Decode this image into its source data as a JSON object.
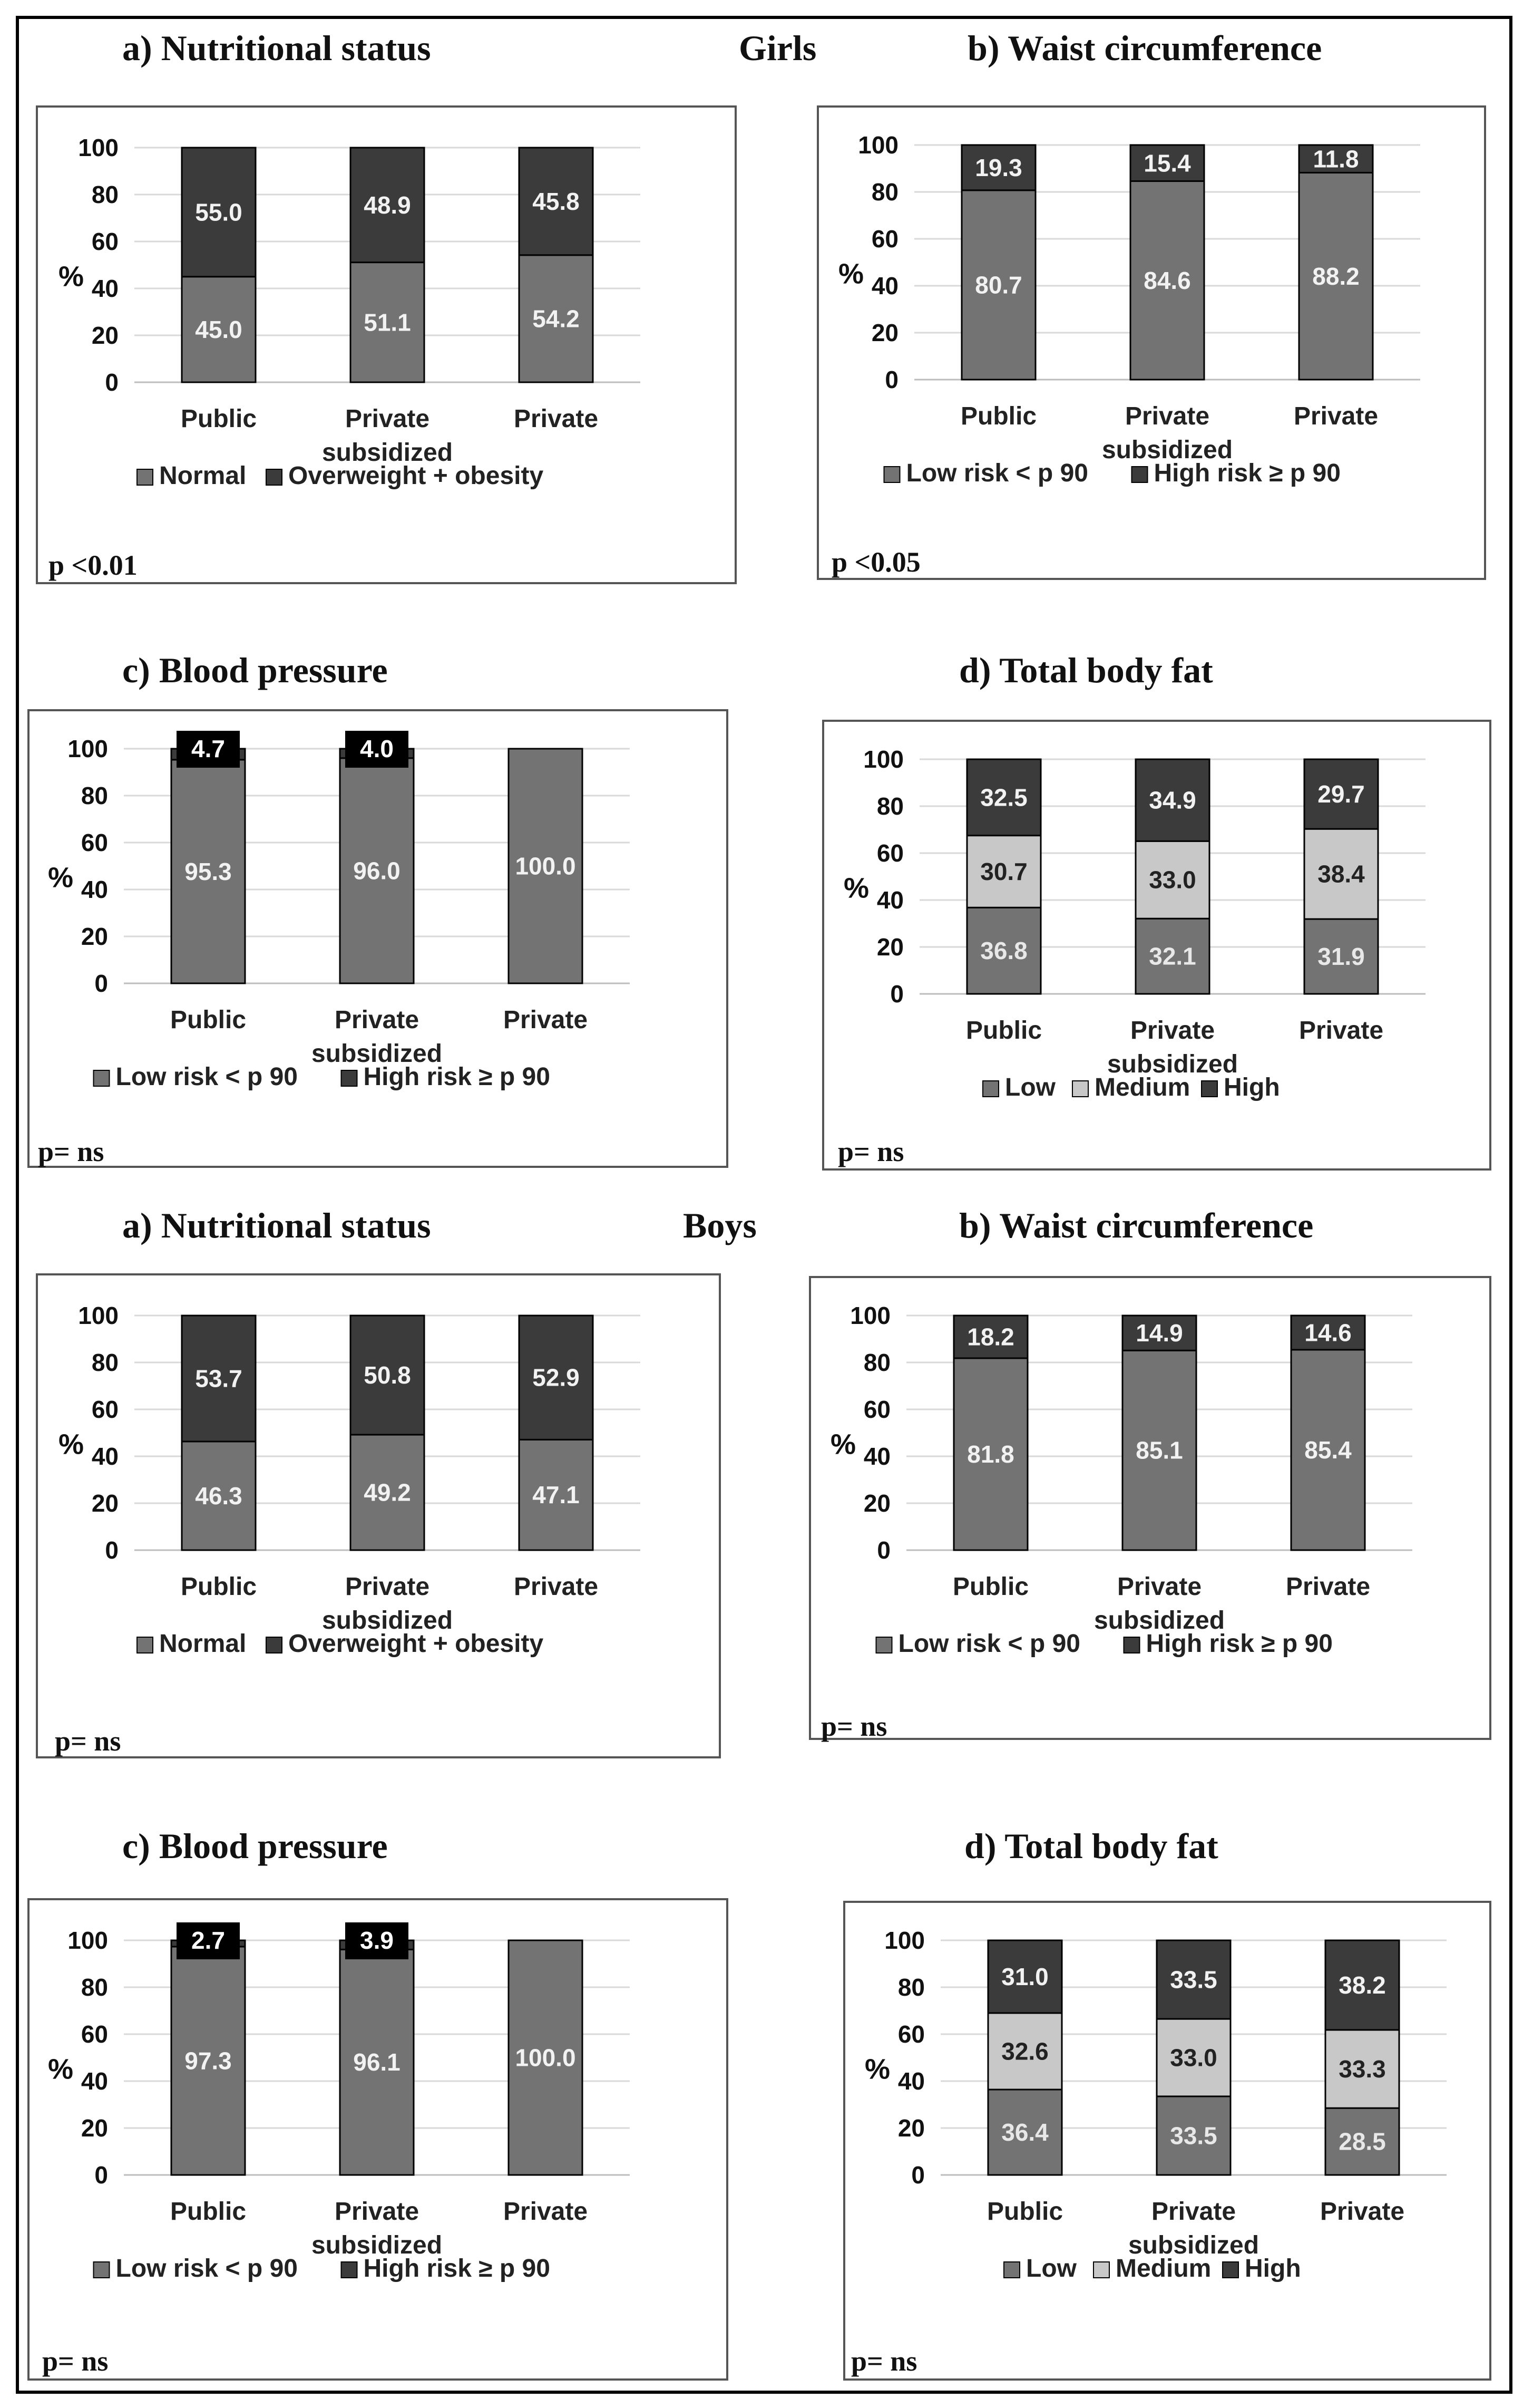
{
  "figure": {
    "girls_label": "Girls",
    "boys_label": "Boys"
  },
  "chart_data": [
    {
      "id": "girls-a",
      "group": "Girls",
      "type": "bar",
      "stacked": true,
      "title": "a)   Nutritional status",
      "ylabel": "%",
      "ylim": [
        0,
        100
      ],
      "yticks": [
        0,
        20,
        40,
        60,
        80,
        100
      ],
      "categories": [
        [
          "Public"
        ],
        [
          "Private",
          "subsidized"
        ],
        [
          "Private"
        ]
      ],
      "series": [
        {
          "name": "Normal",
          "color": "#737373",
          "label_color": "#f2f2f2",
          "values": [
            "45.0",
            "51.1",
            "54.2"
          ]
        },
        {
          "name": "Overweight + obesity",
          "color": "#3b3b3b",
          "label_color": "#f2f2f2",
          "values": [
            "55.0",
            "48.9",
            "45.8"
          ]
        }
      ],
      "p_value": "p <0.01"
    },
    {
      "id": "girls-b",
      "group": "Girls",
      "type": "bar",
      "stacked": true,
      "title": "b) Waist circumference",
      "ylabel": "%",
      "ylim": [
        0,
        100
      ],
      "yticks": [
        0,
        20,
        40,
        60,
        80,
        100
      ],
      "categories": [
        [
          "Public"
        ],
        [
          "Private",
          "subsidized"
        ],
        [
          "Private"
        ]
      ],
      "series": [
        {
          "name": "Low risk < p 90",
          "color": "#737373",
          "label_color": "#f2f2f2",
          "values": [
            "80.7",
            "84.6",
            "88.2"
          ]
        },
        {
          "name": "High risk ≥ p 90",
          "color": "#3b3b3b",
          "label_color": "#f2f2f2",
          "values": [
            "19.3",
            "15.4",
            "11.8"
          ]
        }
      ],
      "p_value": "p <0.05"
    },
    {
      "id": "girls-c",
      "group": "Girls",
      "type": "bar",
      "stacked": true,
      "title": "c) Blood pressure",
      "ylabel": "%",
      "ylim": [
        0,
        100
      ],
      "yticks": [
        0,
        20,
        40,
        60,
        80,
        100
      ],
      "categories": [
        [
          "Public"
        ],
        [
          "Private",
          "subsidized"
        ],
        [
          "Private"
        ]
      ],
      "series": [
        {
          "name": "Low risk < p 90",
          "color": "#737373",
          "label_color": "#f2f2f2",
          "values": [
            "95.3",
            "96.0",
            "100.0"
          ]
        },
        {
          "name": "High risk ≥ p 90",
          "color": "#3b3b3b",
          "label_color": "#ffffff",
          "label_box": true,
          "values": [
            "4.7",
            "4.0",
            null
          ]
        }
      ],
      "p_value": "p= ns"
    },
    {
      "id": "girls-d",
      "group": "Girls",
      "type": "bar",
      "stacked": true,
      "title": "d) Total body fat",
      "ylabel": "%",
      "ylim": [
        0,
        100
      ],
      "yticks": [
        0,
        20,
        40,
        60,
        80,
        100
      ],
      "categories": [
        [
          "Public"
        ],
        [
          "Private",
          "subsidized"
        ],
        [
          "Private"
        ]
      ],
      "series": [
        {
          "name": "Low",
          "color": "#737373",
          "label_color": "#e8e8e8",
          "values": [
            "36.8",
            "32.1",
            "31.9"
          ]
        },
        {
          "name": "Medium",
          "color": "#c8c8c8",
          "label_color": "#222222",
          "values": [
            "30.7",
            "33.0",
            "38.4"
          ]
        },
        {
          "name": "High",
          "color": "#3b3b3b",
          "label_color": "#f2f2f2",
          "values": [
            "32.5",
            "34.9",
            "29.7"
          ]
        }
      ],
      "p_value": "p= ns"
    },
    {
      "id": "boys-a",
      "group": "Boys",
      "type": "bar",
      "stacked": true,
      "title": "a)  Nutritional status",
      "ylabel": "%",
      "ylim": [
        0,
        100
      ],
      "yticks": [
        0,
        20,
        40,
        60,
        80,
        100
      ],
      "categories": [
        [
          "Public"
        ],
        [
          "Private",
          "subsidized"
        ],
        [
          "Private"
        ]
      ],
      "series": [
        {
          "name": "Normal",
          "color": "#737373",
          "label_color": "#f2f2f2",
          "values": [
            "46.3",
            "49.2",
            "47.1"
          ]
        },
        {
          "name": "Overweight + obesity",
          "color": "#3b3b3b",
          "label_color": "#f2f2f2",
          "values": [
            "53.7",
            "50.8",
            "52.9"
          ]
        }
      ],
      "p_value": "p= ns"
    },
    {
      "id": "boys-b",
      "group": "Boys",
      "type": "bar",
      "stacked": true,
      "title": "b) Waist circumference",
      "ylabel": "%",
      "ylim": [
        0,
        100
      ],
      "yticks": [
        0,
        20,
        40,
        60,
        80,
        100
      ],
      "categories": [
        [
          "Public"
        ],
        [
          "Private",
          "subsidized"
        ],
        [
          "Private"
        ]
      ],
      "series": [
        {
          "name": "Low risk < p 90",
          "color": "#737373",
          "label_color": "#f2f2f2",
          "values": [
            "81.8",
            "85.1",
            "85.4"
          ]
        },
        {
          "name": "High risk ≥ p 90",
          "color": "#3b3b3b",
          "label_color": "#f2f2f2",
          "values": [
            "18.2",
            "14.9",
            "14.6"
          ]
        }
      ],
      "p_value": "p= ns"
    },
    {
      "id": "boys-c",
      "group": "Boys",
      "type": "bar",
      "stacked": true,
      "title": "c) Blood pressure",
      "ylabel": "%",
      "ylim": [
        0,
        100
      ],
      "yticks": [
        0,
        20,
        40,
        60,
        80,
        100
      ],
      "categories": [
        [
          "Public"
        ],
        [
          "Private",
          "subsidized"
        ],
        [
          "Private"
        ]
      ],
      "series": [
        {
          "name": "Low risk < p 90",
          "color": "#737373",
          "label_color": "#f2f2f2",
          "values": [
            "97.3",
            "96.1",
            "100.0"
          ]
        },
        {
          "name": "High risk ≥ p 90",
          "color": "#3b3b3b",
          "label_color": "#ffffff",
          "label_box": true,
          "values": [
            "2.7",
            "3.9",
            null
          ]
        }
      ],
      "p_value": "p= ns"
    },
    {
      "id": "boys-d",
      "group": "Boys",
      "type": "bar",
      "stacked": true,
      "title": "d) Total body fat",
      "ylabel": "%",
      "ylim": [
        0,
        100
      ],
      "yticks": [
        0,
        20,
        40,
        60,
        80,
        100
      ],
      "categories": [
        [
          "Public"
        ],
        [
          "Private",
          "subsidized"
        ],
        [
          "Private"
        ]
      ],
      "series": [
        {
          "name": "Low",
          "color": "#737373",
          "label_color": "#e8e8e8",
          "values": [
            "36.4",
            "33.5",
            "28.5"
          ]
        },
        {
          "name": "Medium",
          "color": "#c8c8c8",
          "label_color": "#222222",
          "values": [
            "32.6",
            "33.0",
            "33.3"
          ]
        },
        {
          "name": "High",
          "color": "#3b3b3b",
          "label_color": "#f2f2f2",
          "values": [
            "31.0",
            "33.5",
            "38.2"
          ]
        }
      ],
      "p_value": "p= ns"
    }
  ]
}
